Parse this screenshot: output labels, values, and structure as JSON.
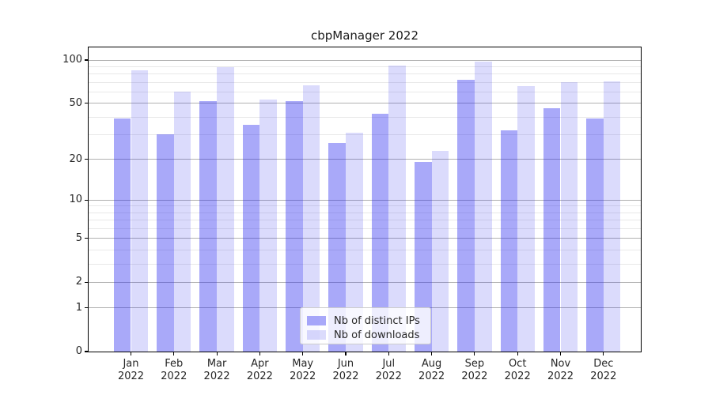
{
  "chart_data": {
    "type": "bar",
    "title": "cbpManager 2022",
    "categories": [
      "Jan 2022",
      "Feb 2022",
      "Mar 2022",
      "Apr 2022",
      "May 2022",
      "Jun 2022",
      "Jul 2022",
      "Aug 2022",
      "Sep 2022",
      "Oct 2022",
      "Nov 2022",
      "Dec 2022"
    ],
    "months": [
      "Jan",
      "Feb",
      "Mar",
      "Apr",
      "May",
      "Jun",
      "Jul",
      "Aug",
      "Sep",
      "Oct",
      "Nov",
      "Dec"
    ],
    "year": "2022",
    "series": [
      {
        "name": "Nb of distinct IPs",
        "color": "rgba(40,40,240,0.40)",
        "values": [
          39,
          30,
          52,
          35,
          52,
          26,
          42,
          19,
          73,
          32,
          46,
          39
        ]
      },
      {
        "name": "Nb of downloads",
        "color": "rgba(40,40,240,0.17)",
        "values": [
          85,
          60,
          89,
          53,
          67,
          31,
          91,
          23,
          97,
          66,
          70,
          71
        ]
      }
    ],
    "y_axis": {
      "scale": "log1p",
      "ticks_major": [
        100,
        50,
        20,
        10,
        5,
        2,
        1,
        0
      ],
      "ticks_minor": [
        3,
        4,
        6,
        7,
        8,
        9,
        30,
        40,
        60,
        70,
        80,
        90
      ],
      "ylim": [
        0,
        101
      ]
    },
    "legend": {
      "position": "lower center",
      "entries": [
        "Nb of distinct IPs",
        "Nb of downloads"
      ]
    },
    "grid": {
      "major_color": "#b0b0b0",
      "minor_color": "#e8e8e8"
    },
    "spine_color": "#000000"
  }
}
